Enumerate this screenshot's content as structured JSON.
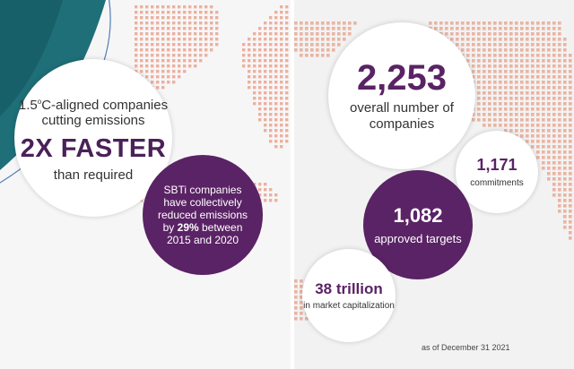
{
  "left": {
    "headline_prefix": "1.5",
    "headline_super": "o",
    "headline_rest": "C-aligned companies cutting emissions",
    "faster": "2X FASTER",
    "than_required": "than required",
    "sbti_text_before": "SBTi companies have collectively reduced emissions by ",
    "sbti_percent": "29%",
    "sbti_text_after": " between 2015 and 2020"
  },
  "right": {
    "companies_value": "2,253",
    "companies_label": "overall number of companies",
    "commitments_value": "1,171",
    "commitments_label": "commitments",
    "targets_value": "1,082",
    "targets_label": "approved targets",
    "market_value": "38 trillion",
    "market_label": "in market capitalization",
    "as_of": "as of December 31 2021"
  },
  "colors": {
    "purple": "#5a2365",
    "teal": "#1f6f78",
    "dots": "#e79a80",
    "dots_dark": "#b7b0b6"
  }
}
